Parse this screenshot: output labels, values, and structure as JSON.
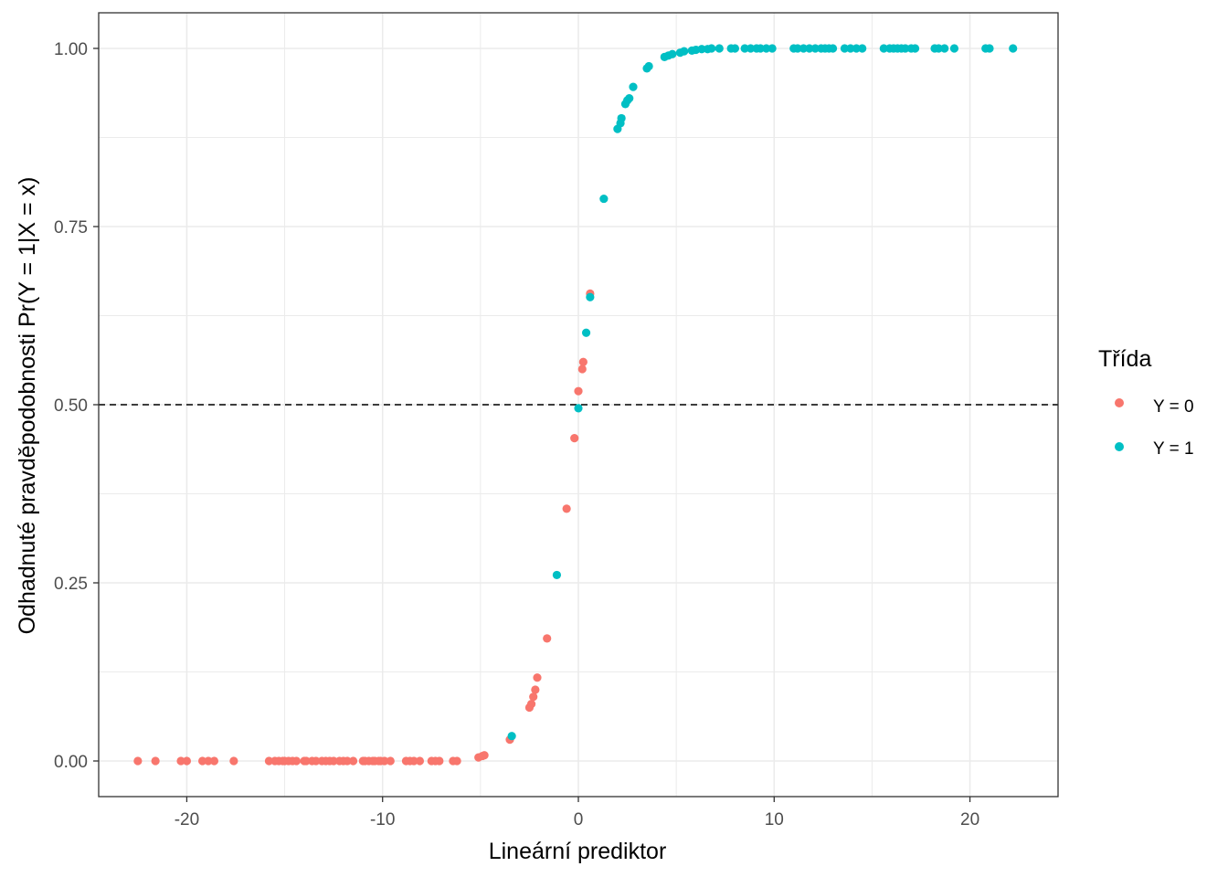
{
  "chart_data": {
    "type": "scatter",
    "title": "",
    "xlabel": "Lineární prediktor",
    "ylabel": "Odhadnuté pravděpodobnosti Pr(Y = 1|X = x)",
    "xlim": [
      -24.5,
      24.5
    ],
    "ylim": [
      -0.05,
      1.05
    ],
    "x_ticks": [
      -20,
      -10,
      0,
      10,
      20
    ],
    "x_tick_labels": [
      "-20",
      "-10",
      "0",
      "10",
      "20"
    ],
    "y_ticks": [
      0,
      0.25,
      0.5,
      0.75,
      1
    ],
    "y_tick_labels": [
      "0.00",
      "0.25",
      "0.50",
      "0.75",
      "1.00"
    ],
    "grid": true,
    "reference_line": {
      "y": 0.5,
      "style": "dashed",
      "color": "#000000"
    },
    "legend": {
      "title": "Třída",
      "placement": "right",
      "entries": [
        {
          "label": "Y = 0",
          "color": "#F8766D"
        },
        {
          "label": "Y = 1",
          "color": "#00BFC4"
        }
      ]
    },
    "series": [
      {
        "name": "Y = 0",
        "color": "#F8766D",
        "x": [
          -22.5,
          -21.6,
          -20.3,
          -20.0,
          -19.2,
          -18.9,
          -18.6,
          -17.6,
          -15.8,
          -15.5,
          -15.3,
          -15.1,
          -15.0,
          -14.8,
          -14.6,
          -14.4,
          -14.0,
          -13.9,
          -13.6,
          -13.4,
          -13.1,
          -12.9,
          -12.7,
          -12.5,
          -12.2,
          -12.0,
          -11.8,
          -11.5,
          -11.0,
          -10.9,
          -10.7,
          -10.5,
          -10.4,
          -10.2,
          -10.1,
          -9.9,
          -9.6,
          -8.8,
          -8.6,
          -8.4,
          -8.1,
          -7.5,
          -7.3,
          -7.1,
          -6.4,
          -6.2,
          -5.1,
          -4.9,
          -4.8,
          -3.5,
          -2.5,
          -2.4,
          -2.3,
          -2.2,
          -2.1,
          -1.6,
          -0.6,
          -0.2,
          0.0,
          0.2,
          0.25,
          0.6
        ],
        "y": [
          0,
          0,
          0,
          0,
          0,
          0,
          0,
          0,
          0,
          0,
          0,
          0,
          0,
          0,
          0,
          0,
          0,
          0,
          0,
          0,
          0,
          0,
          0,
          0,
          0,
          0,
          0,
          0,
          0,
          0,
          0,
          0,
          0,
          0,
          0,
          0,
          0,
          0,
          0,
          0,
          0,
          0,
          0,
          0,
          0,
          0,
          0.005,
          0.007,
          0.008,
          0.03,
          0.075,
          0.08,
          0.09,
          0.1,
          0.117,
          0.172,
          0.354,
          0.453,
          0.519,
          0.55,
          0.56,
          0.656
        ]
      },
      {
        "name": "Y = 1",
        "color": "#00BFC4",
        "x": [
          -3.4,
          -1.1,
          0.0,
          0.4,
          0.6,
          1.3,
          2.0,
          2.15,
          2.2,
          2.4,
          2.5,
          2.6,
          2.8,
          3.5,
          3.6,
          4.4,
          4.6,
          4.8,
          5.2,
          5.4,
          5.8,
          6.0,
          6.3,
          6.6,
          6.8,
          7.2,
          7.8,
          8.0,
          8.5,
          8.8,
          9.1,
          9.3,
          9.6,
          9.9,
          11.0,
          11.2,
          11.5,
          11.8,
          12.1,
          12.4,
          12.6,
          12.8,
          13.0,
          13.6,
          13.9,
          14.2,
          14.5,
          15.6,
          15.9,
          16.1,
          16.3,
          16.5,
          16.7,
          17.0,
          17.2,
          18.2,
          18.4,
          18.7,
          19.2,
          20.8,
          21.0,
          22.2
        ],
        "y": [
          0.035,
          0.261,
          0.495,
          0.601,
          0.651,
          0.789,
          0.887,
          0.895,
          0.902,
          0.922,
          0.927,
          0.93,
          0.946,
          0.972,
          0.975,
          0.988,
          0.99,
          0.992,
          0.994,
          0.996,
          0.997,
          0.998,
          0.999,
          0.999,
          1.0,
          1.0,
          1.0,
          1.0,
          1.0,
          1.0,
          1.0,
          1.0,
          1.0,
          1.0,
          1.0,
          1.0,
          1.0,
          1.0,
          1.0,
          1.0,
          1.0,
          1.0,
          1.0,
          1.0,
          1.0,
          1.0,
          1.0,
          1.0,
          1.0,
          1.0,
          1.0,
          1.0,
          1.0,
          1.0,
          1.0,
          1.0,
          1.0,
          1.0,
          1.0,
          1.0,
          1.0,
          1.0
        ]
      }
    ]
  }
}
